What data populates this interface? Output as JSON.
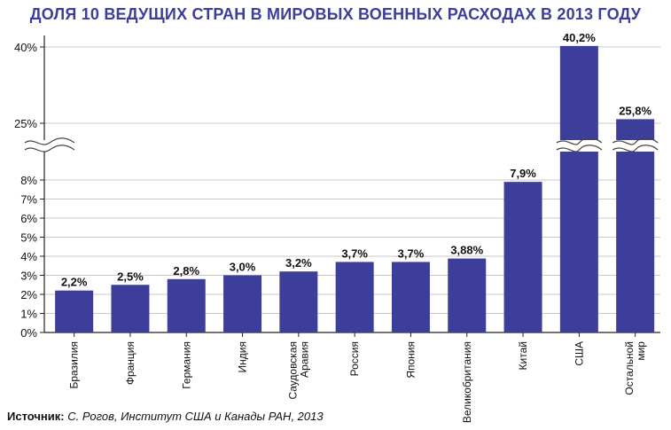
{
  "title": "ДОЛЯ 10 ВЕДУЩИХ СТРАН В МИРОВЫХ ВОЕННЫХ РАСХОДАХ В 2013 ГОДУ",
  "source": {
    "label": "Источник:",
    "text": "С. Рогов, Институт США и Канады РАН, 2013"
  },
  "colors": {
    "bar": "#3d3e9a",
    "title": "#3d3e9a",
    "axis": "#222222"
  },
  "chart_data": {
    "type": "bar",
    "title": "ДОЛЯ 10 ВЕДУЩИХ СТРАН В МИРОВЫХ ВОЕННЫХ РАСХОДАХ В 2013 ГОДУ",
    "xlabel": "",
    "ylabel": "",
    "y_axis_break": true,
    "y_ticks_lower": [
      "0%",
      "1%",
      "2%",
      "3%",
      "4%",
      "5%",
      "6%",
      "7%",
      "8%"
    ],
    "y_ticks_upper": [
      "25%",
      "40%"
    ],
    "ylim_lower": [
      0,
      8
    ],
    "ylim_upper": [
      25,
      40
    ],
    "categories": [
      "Бразилия",
      "Франция",
      "Германия",
      "Индия",
      "Саудовская Аравия",
      "Россия",
      "Япония",
      "Великобритания",
      "Китай",
      "США",
      "Остальной мир"
    ],
    "category_lines": [
      [
        "Бразилия"
      ],
      [
        "Франция"
      ],
      [
        "Германия"
      ],
      [
        "Индия"
      ],
      [
        "Саудовская",
        "Аравия"
      ],
      [
        "Россия"
      ],
      [
        "Япония"
      ],
      [
        "Великобритания"
      ],
      [
        "Китай"
      ],
      [
        "США"
      ],
      [
        "Остальной",
        "мир"
      ]
    ],
    "values": [
      2.2,
      2.5,
      2.8,
      3.0,
      3.2,
      3.7,
      3.7,
      3.88,
      7.9,
      40.2,
      25.8
    ],
    "data_labels": [
      "2,2%",
      "2,5%",
      "2,8%",
      "3,0%",
      "3,2%",
      "3,7%",
      "3,7%",
      "3,88%",
      "7,9%",
      "40,2%",
      "25,8%"
    ],
    "grid": true
  }
}
